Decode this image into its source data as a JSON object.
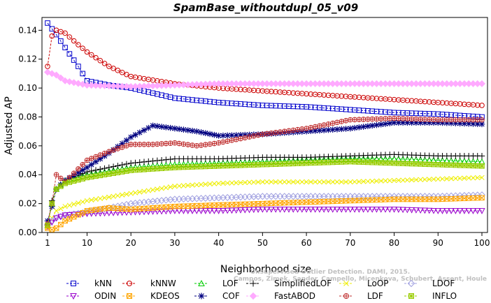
{
  "chart_data": {
    "type": "line",
    "title": "SpamBase_withoutdupl_05_v09",
    "xlabel": "Neighborhood size",
    "ylabel": "Adjusted AP",
    "xlim": [
      1,
      100
    ],
    "ylim": [
      0,
      0.145
    ],
    "x_ticks": [
      1,
      10,
      20,
      30,
      40,
      50,
      60,
      70,
      80,
      90,
      100
    ],
    "y_ticks": [
      "0.00",
      "0.02",
      "0.04",
      "0.06",
      "0.08",
      "0.10",
      "0.12",
      "0.14"
    ],
    "grid": false,
    "legend_position": "bottom",
    "watermark_lines": [
      "Unsupervised Outlier Detection. DAMI, 2015.",
      "Campos, Zimek, Sander, Campello, Micenkova, Schubert, Assent, Houle"
    ],
    "series": [
      {
        "name": "kNN",
        "color": "#0000cc",
        "marker": "square",
        "anchors": [
          [
            1,
            0.145
          ],
          [
            2,
            0.141
          ],
          [
            3,
            0.137
          ],
          [
            5,
            0.128
          ],
          [
            8,
            0.115
          ],
          [
            10,
            0.105
          ],
          [
            15,
            0.102
          ],
          [
            20,
            0.1
          ],
          [
            30,
            0.093
          ],
          [
            40,
            0.09
          ],
          [
            50,
            0.088
          ],
          [
            60,
            0.087
          ],
          [
            70,
            0.085
          ],
          [
            80,
            0.083
          ],
          [
            90,
            0.082
          ],
          [
            100,
            0.08
          ]
        ]
      },
      {
        "name": "kNNW",
        "color": "#cc0000",
        "marker": "circle",
        "anchors": [
          [
            1,
            0.115
          ],
          [
            2,
            0.136
          ],
          [
            3,
            0.14
          ],
          [
            5,
            0.138
          ],
          [
            8,
            0.13
          ],
          [
            10,
            0.125
          ],
          [
            15,
            0.115
          ],
          [
            20,
            0.108
          ],
          [
            30,
            0.103
          ],
          [
            40,
            0.1
          ],
          [
            50,
            0.098
          ],
          [
            60,
            0.096
          ],
          [
            70,
            0.094
          ],
          [
            80,
            0.092
          ],
          [
            90,
            0.09
          ],
          [
            100,
            0.088
          ]
        ]
      },
      {
        "name": "LOF",
        "color": "#00cc00",
        "marker": "triangle-up",
        "anchors": [
          [
            1,
            0.005
          ],
          [
            2,
            0.02
          ],
          [
            3,
            0.03
          ],
          [
            5,
            0.036
          ],
          [
            10,
            0.04
          ],
          [
            20,
            0.045
          ],
          [
            30,
            0.047
          ],
          [
            40,
            0.048
          ],
          [
            50,
            0.049
          ],
          [
            60,
            0.05
          ],
          [
            70,
            0.051
          ],
          [
            80,
            0.051
          ],
          [
            90,
            0.05
          ],
          [
            100,
            0.049
          ]
        ]
      },
      {
        "name": "SimplifiedLOF",
        "color": "#000000",
        "marker": "plus",
        "anchors": [
          [
            1,
            0.005
          ],
          [
            2,
            0.022
          ],
          [
            3,
            0.03
          ],
          [
            5,
            0.036
          ],
          [
            10,
            0.042
          ],
          [
            20,
            0.048
          ],
          [
            30,
            0.051
          ],
          [
            40,
            0.051
          ],
          [
            50,
            0.052
          ],
          [
            60,
            0.052
          ],
          [
            70,
            0.053
          ],
          [
            80,
            0.054
          ],
          [
            90,
            0.053
          ],
          [
            100,
            0.053
          ]
        ]
      },
      {
        "name": "LoOP",
        "color": "#eeee00",
        "marker": "x",
        "anchors": [
          [
            1,
            0.004
          ],
          [
            2,
            0.01
          ],
          [
            3,
            0.015
          ],
          [
            5,
            0.018
          ],
          [
            10,
            0.022
          ],
          [
            20,
            0.027
          ],
          [
            30,
            0.032
          ],
          [
            40,
            0.034
          ],
          [
            50,
            0.035
          ],
          [
            60,
            0.035
          ],
          [
            70,
            0.035
          ],
          [
            80,
            0.036
          ],
          [
            90,
            0.037
          ],
          [
            100,
            0.038
          ]
        ]
      },
      {
        "name": "LDOF",
        "color": "#a0a0e0",
        "marker": "diamond",
        "anchors": [
          [
            1,
            0.005
          ],
          [
            2,
            0.008
          ],
          [
            3,
            0.01
          ],
          [
            5,
            0.012
          ],
          [
            10,
            0.014
          ],
          [
            20,
            0.02
          ],
          [
            30,
            0.023
          ],
          [
            40,
            0.024
          ],
          [
            50,
            0.025
          ],
          [
            60,
            0.025
          ],
          [
            70,
            0.025
          ],
          [
            80,
            0.025
          ],
          [
            90,
            0.025
          ],
          [
            100,
            0.026
          ]
        ]
      },
      {
        "name": "ODIN",
        "color": "#9900cc",
        "marker": "triangle-down",
        "anchors": [
          [
            1,
            0.004
          ],
          [
            2,
            0.007
          ],
          [
            3,
            0.01
          ],
          [
            5,
            0.012
          ],
          [
            10,
            0.013
          ],
          [
            20,
            0.014
          ],
          [
            30,
            0.015
          ],
          [
            40,
            0.015
          ],
          [
            50,
            0.016
          ],
          [
            60,
            0.016
          ],
          [
            70,
            0.016
          ],
          [
            80,
            0.016
          ],
          [
            90,
            0.015
          ],
          [
            100,
            0.015
          ]
        ]
      },
      {
        "name": "KDEOS",
        "color": "#ffa500",
        "marker": "square-x",
        "anchors": [
          [
            1,
            0.003
          ],
          [
            2,
            0.002
          ],
          [
            3,
            0.003
          ],
          [
            5,
            0.008
          ],
          [
            10,
            0.015
          ],
          [
            15,
            0.017
          ],
          [
            20,
            0.016
          ],
          [
            30,
            0.018
          ],
          [
            40,
            0.019
          ],
          [
            50,
            0.02
          ],
          [
            60,
            0.021
          ],
          [
            70,
            0.022
          ],
          [
            80,
            0.023
          ],
          [
            90,
            0.023
          ],
          [
            100,
            0.024
          ]
        ]
      },
      {
        "name": "COF",
        "color": "#000080",
        "marker": "star",
        "anchors": [
          [
            1,
            0.008
          ],
          [
            2,
            0.018
          ],
          [
            3,
            0.03
          ],
          [
            5,
            0.036
          ],
          [
            10,
            0.045
          ],
          [
            15,
            0.055
          ],
          [
            20,
            0.066
          ],
          [
            25,
            0.074
          ],
          [
            30,
            0.072
          ],
          [
            35,
            0.07
          ],
          [
            40,
            0.067
          ],
          [
            50,
            0.068
          ],
          [
            60,
            0.07
          ],
          [
            70,
            0.072
          ],
          [
            80,
            0.076
          ],
          [
            90,
            0.076
          ],
          [
            100,
            0.075
          ]
        ]
      },
      {
        "name": "FastABOD",
        "color": "#ffaaff",
        "marker": "diamond-fill",
        "anchors": [
          [
            1,
            0.111
          ],
          [
            3,
            0.109
          ],
          [
            5,
            0.105
          ],
          [
            10,
            0.102
          ],
          [
            20,
            0.101
          ],
          [
            30,
            0.102
          ],
          [
            40,
            0.103
          ],
          [
            50,
            0.103
          ],
          [
            60,
            0.103
          ],
          [
            70,
            0.103
          ],
          [
            80,
            0.103
          ],
          [
            90,
            0.103
          ],
          [
            100,
            0.103
          ]
        ]
      },
      {
        "name": "LDF",
        "color": "#c03030",
        "marker": "circle-plus",
        "anchors": [
          [
            1,
            0.006
          ],
          [
            2,
            0.02
          ],
          [
            3,
            0.04
          ],
          [
            5,
            0.035
          ],
          [
            10,
            0.05
          ],
          [
            15,
            0.056
          ],
          [
            20,
            0.061
          ],
          [
            25,
            0.061
          ],
          [
            30,
            0.062
          ],
          [
            35,
            0.06
          ],
          [
            40,
            0.062
          ],
          [
            50,
            0.068
          ],
          [
            60,
            0.072
          ],
          [
            70,
            0.078
          ],
          [
            80,
            0.079
          ],
          [
            90,
            0.078
          ],
          [
            100,
            0.078
          ]
        ]
      },
      {
        "name": "INFLO",
        "color": "#99cc00",
        "marker": "square-star",
        "anchors": [
          [
            1,
            0.005
          ],
          [
            2,
            0.02
          ],
          [
            3,
            0.03
          ],
          [
            5,
            0.034
          ],
          [
            10,
            0.038
          ],
          [
            20,
            0.043
          ],
          [
            30,
            0.045
          ],
          [
            40,
            0.046
          ],
          [
            50,
            0.047
          ],
          [
            60,
            0.048
          ],
          [
            70,
            0.049
          ],
          [
            80,
            0.048
          ],
          [
            90,
            0.047
          ],
          [
            100,
            0.046
          ]
        ]
      }
    ]
  }
}
